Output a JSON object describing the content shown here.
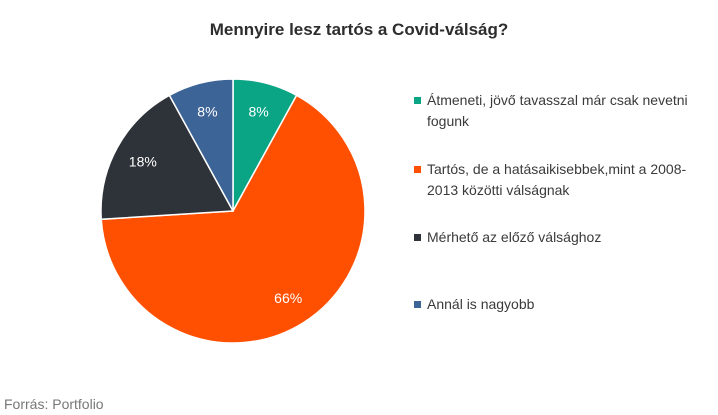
{
  "chart_data": {
    "type": "pie",
    "title": "Mennyire lesz tartós a Covid-válság?",
    "slices": [
      {
        "label": "Átmeneti, jövő tavasszal már csak nevetni fogunk",
        "value": 8,
        "value_label": "8%",
        "color": "#0aa585"
      },
      {
        "label": "Tartós, de a hatásaikisebbek,mint  a 2008-2013 közötti válságnak",
        "value": 66,
        "value_label": "66%",
        "color": "#fe5000"
      },
      {
        "label": "Mérhető az előző válsághoz",
        "value": 18,
        "value_label": "18%",
        "color": "#2e3339"
      },
      {
        "label": "Annál is nagyobb",
        "value": 8,
        "value_label": "8%",
        "color": "#3d6496"
      }
    ],
    "legend_position": "right"
  },
  "source": "Forrás: Portfolio"
}
